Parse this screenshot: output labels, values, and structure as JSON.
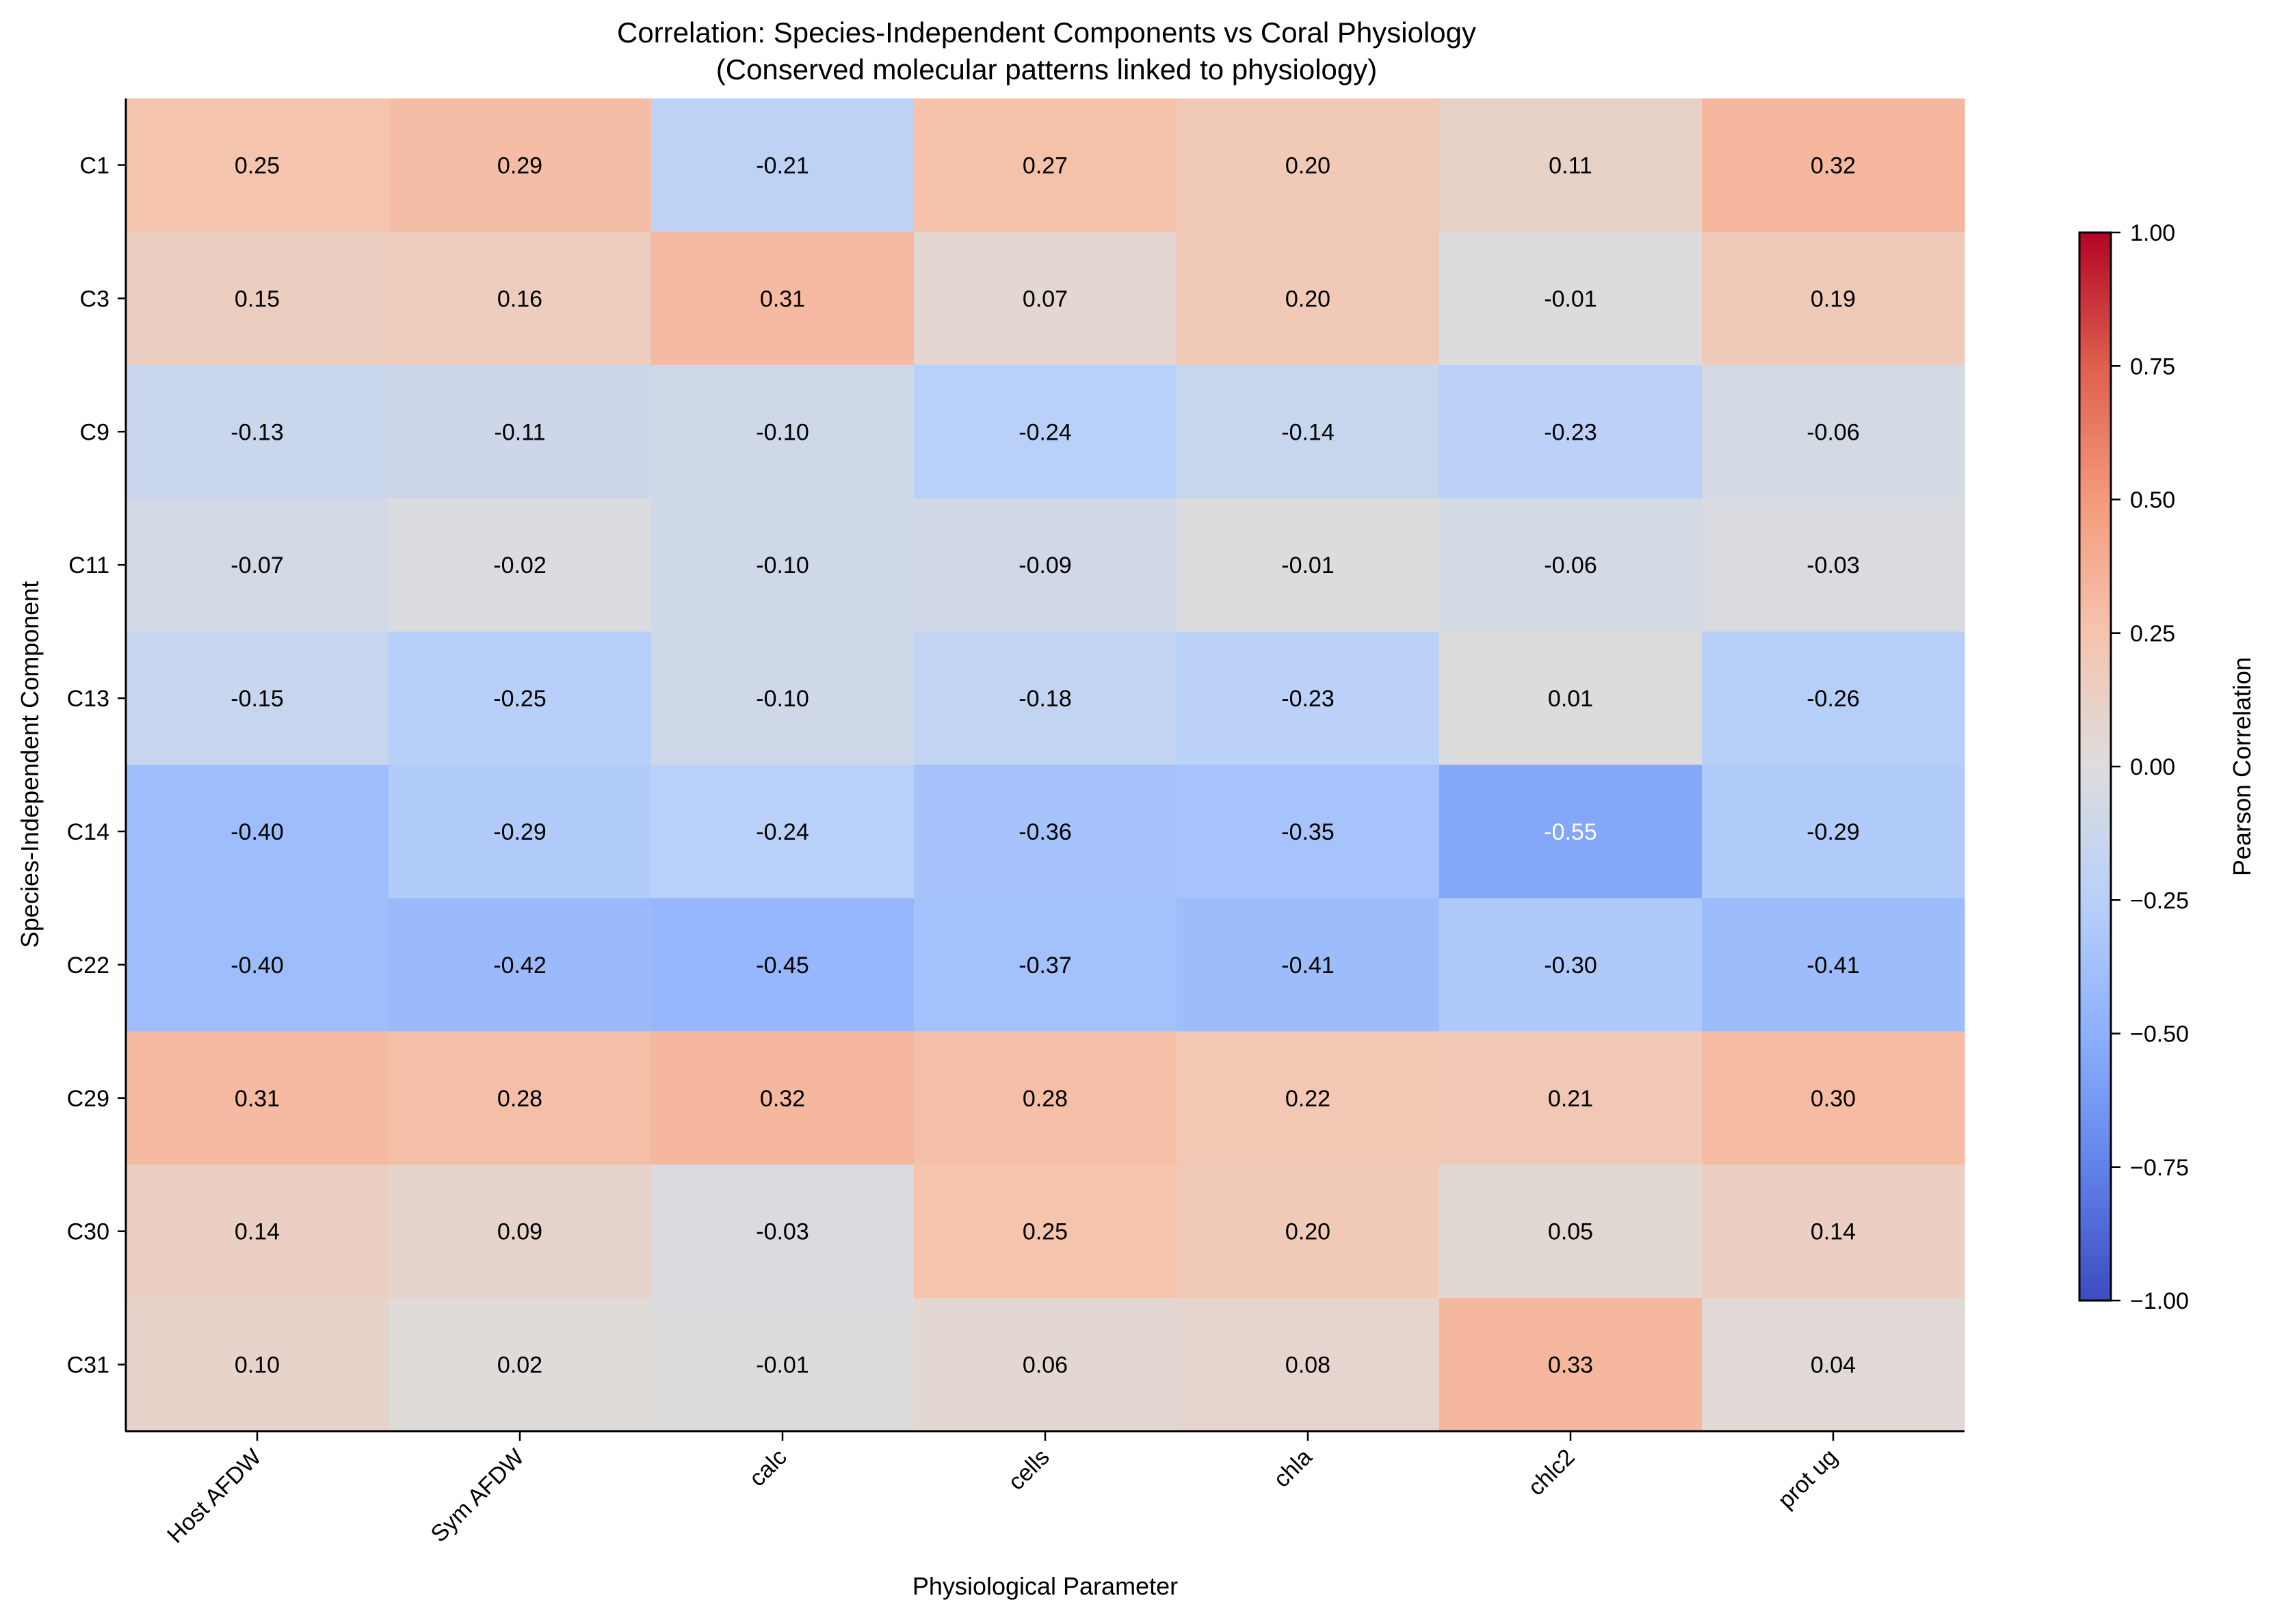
{
  "chart_data": {
    "type": "heatmap",
    "title": "Correlation: Species-Independent Components vs Coral Physiology",
    "subtitle": "(Conserved molecular patterns linked to physiology)",
    "xlabel": "Physiological Parameter",
    "ylabel": "Species-Independent Component",
    "x_categories": [
      "Host AFDW",
      "Sym AFDW",
      "calc",
      "cells",
      "chla",
      "chlc2",
      "prot ug"
    ],
    "y_categories": [
      "C1",
      "C3",
      "C9",
      "C11",
      "C13",
      "C14",
      "C22",
      "C29",
      "C30",
      "C31"
    ],
    "values": [
      [
        0.25,
        0.29,
        -0.21,
        0.27,
        0.2,
        0.11,
        0.32
      ],
      [
        0.15,
        0.16,
        0.31,
        0.07,
        0.2,
        -0.01,
        0.19
      ],
      [
        -0.13,
        -0.11,
        -0.1,
        -0.24,
        -0.14,
        -0.23,
        -0.06
      ],
      [
        -0.07,
        -0.02,
        -0.1,
        -0.09,
        -0.01,
        -0.06,
        -0.03
      ],
      [
        -0.15,
        -0.25,
        -0.1,
        -0.18,
        -0.23,
        0.01,
        -0.26
      ],
      [
        -0.4,
        -0.29,
        -0.24,
        -0.36,
        -0.35,
        -0.55,
        -0.29
      ],
      [
        -0.4,
        -0.42,
        -0.45,
        -0.37,
        -0.41,
        -0.3,
        -0.41
      ],
      [
        0.31,
        0.28,
        0.32,
        0.28,
        0.22,
        0.21,
        0.3
      ],
      [
        0.14,
        0.09,
        -0.03,
        0.25,
        0.2,
        0.05,
        0.14
      ],
      [
        0.1,
        0.02,
        -0.01,
        0.06,
        0.08,
        0.33,
        0.04
      ]
    ],
    "annotation_format": "0.00",
    "colormap": "coolwarm",
    "vmin": -1.0,
    "vmax": 1.0,
    "colorbar": {
      "label": "Pearson Correlation",
      "ticks": [
        1.0,
        0.75,
        0.5,
        0.25,
        0.0,
        -0.25,
        -0.5,
        -0.75,
        -1.0
      ],
      "tick_labels": [
        "1.00",
        "0.75",
        "0.50",
        "0.25",
        "0.00",
        "−0.25",
        "−0.50",
        "−0.75",
        "−1.00"
      ],
      "placement": "right"
    },
    "grid": false
  }
}
